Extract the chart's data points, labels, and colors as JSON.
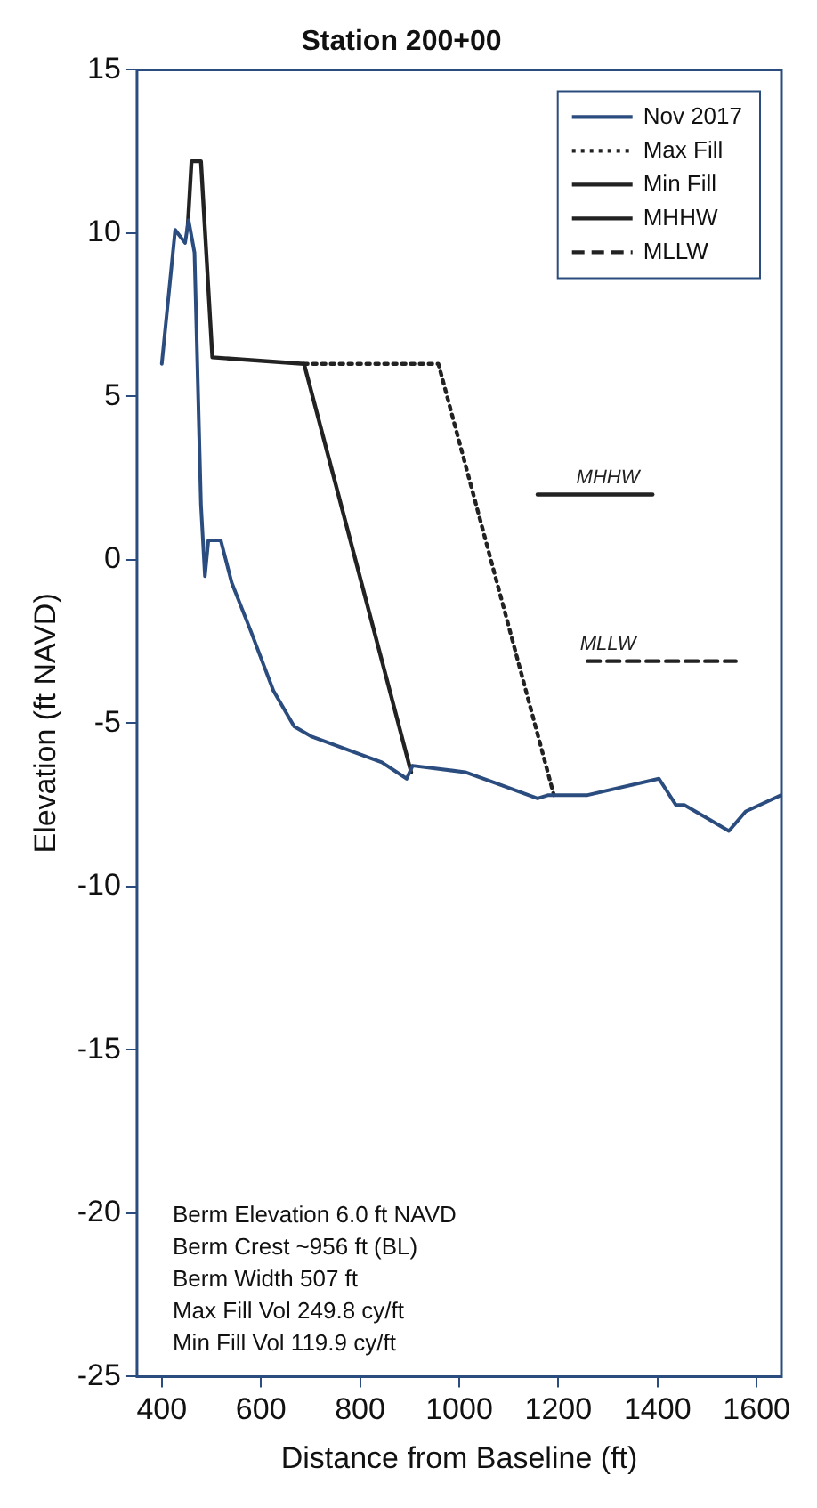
{
  "chart_data": {
    "type": "line",
    "title": "Station 200+00",
    "xlabel": "Distance from Baseline (ft)",
    "ylabel": "Elevation (ft NAVD)",
    "xlim": [
      350,
      1650
    ],
    "xticks": [
      400,
      600,
      800,
      1000,
      1200,
      1400,
      1600
    ],
    "ylim": [
      -25,
      15
    ],
    "yticks": [
      -25,
      -20,
      -15,
      -10,
      -5,
      0,
      5,
      10,
      15
    ],
    "grid": false,
    "legend": "top right",
    "series": [
      {
        "name": "Nov 2017",
        "color": "#2b4c7e",
        "line_style": "solid",
        "x": [
          400,
          427,
          447,
          454,
          466,
          479,
          487,
          494,
          519,
          541,
          580,
          625,
          667,
          701,
          844,
          894,
          906,
          1012,
          1067,
          1158,
          1180,
          1259,
          1403,
          1437,
          1454,
          1499,
          1544,
          1578,
          1650
        ],
        "values": [
          6.0,
          10.1,
          9.7,
          10.4,
          9.4,
          1.7,
          -0.5,
          0.6,
          0.6,
          -0.7,
          -2.2,
          -4.0,
          -5.1,
          -5.4,
          -6.2,
          -6.7,
          -6.3,
          -6.5,
          -6.8,
          -7.3,
          -7.2,
          -7.2,
          -6.7,
          -7.5,
          -7.5,
          -7.9,
          -8.3,
          -7.7,
          -7.2
        ]
      },
      {
        "name": "Max Fill",
        "color": "#222222",
        "line_style": "dotted",
        "x": [
          687,
          958,
          1191
        ],
        "values": [
          6.0,
          6.0,
          -7.2
        ]
      },
      {
        "name": "Min Fill",
        "color": "#222222",
        "line_style": "solid",
        "x": [
          452,
          460,
          479,
          502,
          687,
          903
        ],
        "values": [
          10.1,
          12.2,
          12.2,
          6.2,
          6.0,
          -6.5
        ]
      },
      {
        "name": "MHHW",
        "color": "#222222",
        "line_style": "solid",
        "x": [
          1158,
          1390
        ],
        "values": [
          2.0,
          2.0
        ]
      },
      {
        "name": "MLLW",
        "color": "#222222",
        "line_style": "dashed",
        "x": [
          1259,
          1558
        ],
        "values": [
          -3.1,
          -3.1
        ]
      }
    ],
    "annotations": [
      {
        "text": "MHHW",
        "x": 1300,
        "y": 2.0
      },
      {
        "text": "MLLW",
        "x": 1300,
        "y": -3.1
      },
      "Berm Elevation 6.0 ft NAVD",
      "Berm Crest ~956 ft (BL)",
      "Berm Width 507 ft",
      "Max Fill Vol 249.8 cy/ft",
      "Min Fill Vol 119.9 cy/ft"
    ]
  }
}
